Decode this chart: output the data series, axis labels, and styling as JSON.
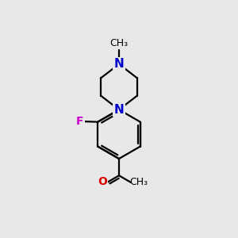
{
  "bg_color": "#e8e8e8",
  "bond_color": "#000000",
  "bond_width": 1.6,
  "N_color": "#0000cc",
  "F_color": "#cc00cc",
  "O_color": "#dd0000",
  "font_size_N": 11,
  "font_size_atom": 10,
  "font_size_me": 9,
  "fig_size": [
    3.0,
    3.0
  ],
  "dpi": 100,
  "xlim": [
    0,
    10
  ],
  "ylim": [
    0,
    10
  ]
}
